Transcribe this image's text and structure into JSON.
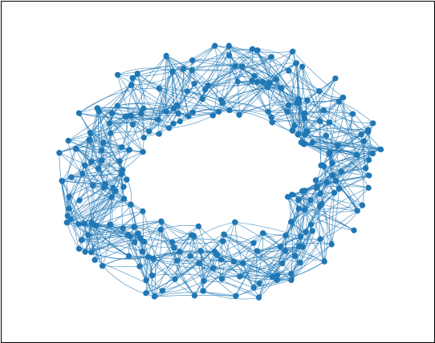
{
  "figure": {
    "kind": "directed-network",
    "layout_shape": "ring",
    "node_color": "#1f77b4",
    "edge_color": "#1f77b4",
    "edge_style": "curved-arrows",
    "background": "#ffffff",
    "frame_color": "#000000"
  }
}
